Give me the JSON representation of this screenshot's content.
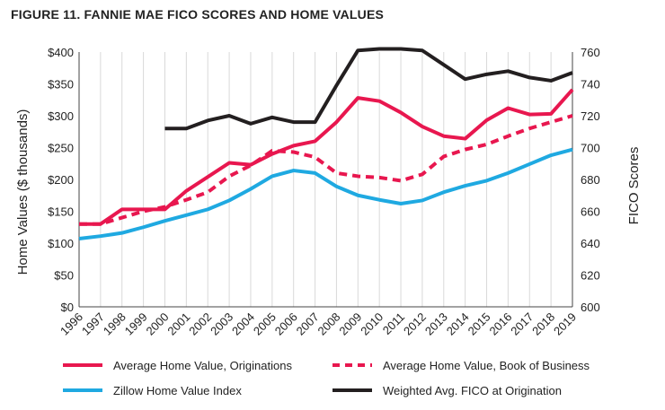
{
  "figure_title": "FIGURE 11. FANNIE MAE FICO SCORES AND HOME VALUES",
  "chart_data": {
    "type": "line",
    "title": "FIGURE 11. FANNIE MAE FICO SCORES AND HOME VALUES",
    "x": [
      1996,
      1997,
      1998,
      1999,
      2000,
      2001,
      2002,
      2003,
      2004,
      2005,
      2006,
      2007,
      2008,
      2009,
      2010,
      2011,
      2012,
      2013,
      2014,
      2015,
      2016,
      2017,
      2018,
      2019
    ],
    "x_tick_labels": [
      "1996",
      "1997",
      "1998",
      "1999",
      "2000",
      "2001",
      "2002",
      "2003",
      "2004",
      "2005",
      "2006",
      "2007",
      "2008",
      "2009",
      "2010",
      "2011",
      "2012",
      "2013",
      "2014",
      "2015",
      "2016",
      "2017",
      "2018",
      "2019"
    ],
    "ylabel": "Home Values ($ thousands)",
    "ylim": [
      0,
      400
    ],
    "y_ticks": [
      0,
      50,
      100,
      150,
      200,
      250,
      300,
      350,
      400
    ],
    "y_tick_labels": [
      "$0",
      "$50",
      "$100",
      "$150",
      "$200",
      "$250",
      "$300",
      "$350",
      "$400"
    ],
    "y2label": "FICO Scores",
    "y2lim": [
      600,
      760
    ],
    "y2_ticks": [
      600,
      620,
      640,
      660,
      680,
      700,
      720,
      740,
      760
    ],
    "y2_tick_labels": [
      "600",
      "620",
      "640",
      "660",
      "680",
      "700",
      "720",
      "740",
      "760"
    ],
    "grid": "vertical",
    "legend_position": "bottom",
    "series": [
      {
        "name": "Average Home Value, Originations",
        "axis": "left",
        "style": "solid",
        "color": "#e8174f",
        "values": [
          130,
          130,
          153,
          153,
          153,
          182,
          204,
          226,
          223,
          240,
          253,
          260,
          290,
          328,
          323,
          305,
          283,
          268,
          264,
          293,
          312,
          302,
          303,
          341
        ]
      },
      {
        "name": "Average Home Value, Book of Business",
        "axis": "left",
        "style": "dashed",
        "color": "#e8174f",
        "values": [
          130,
          130,
          140,
          150,
          157,
          168,
          180,
          205,
          222,
          245,
          243,
          235,
          210,
          205,
          203,
          198,
          208,
          236,
          247,
          255,
          268,
          280,
          290,
          300
        ]
      },
      {
        "name": "Zillow Home Value Index",
        "axis": "left",
        "style": "solid",
        "color": "#1fa9e1",
        "values": [
          107,
          111,
          116,
          125,
          135,
          144,
          153,
          167,
          185,
          205,
          214,
          210,
          189,
          175,
          168,
          162,
          167,
          180,
          190,
          198,
          210,
          224,
          238,
          247
        ]
      },
      {
        "name": "Weighted Avg. FICO at Origination",
        "axis": "right",
        "style": "solid",
        "color": "#231f20",
        "values": [
          null,
          null,
          null,
          null,
          712,
          712,
          717,
          720,
          715,
          719,
          716,
          716,
          739,
          761,
          762,
          762,
          761,
          752,
          743,
          746,
          748,
          744,
          742,
          747
        ]
      }
    ]
  }
}
